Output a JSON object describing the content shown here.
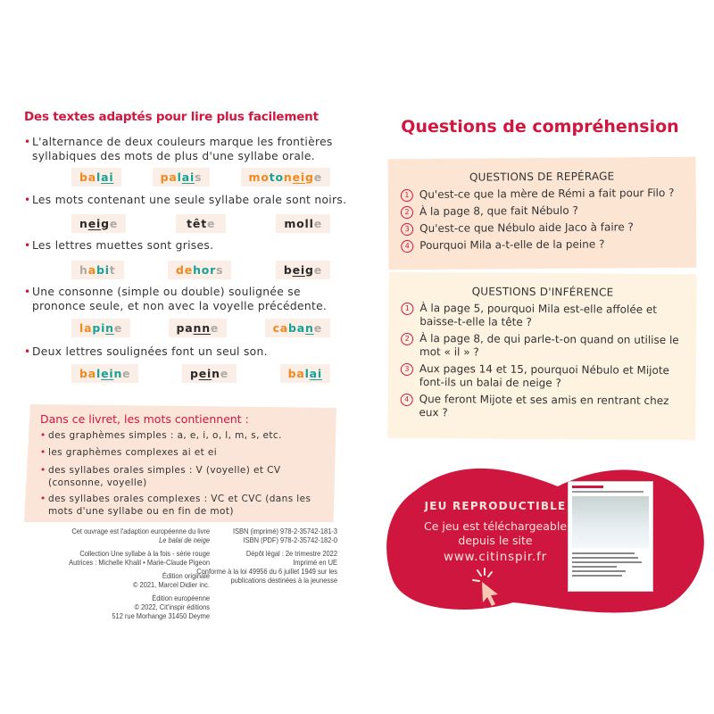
{
  "left": {
    "title": "Des textes adaptés pour lire plus facilement",
    "rules": [
      {
        "text": "L'alternance de deux couleurs marque les frontières syllabiques des mots de plus d'une syllabe orale.",
        "words": [
          [
            [
              "ba",
              "o"
            ],
            [
              "l",
              "t"
            ],
            [
              "ai",
              "t",
              1
            ]
          ],
          [
            [
              "pa",
              "o"
            ],
            [
              "l",
              "t"
            ],
            [
              "ai",
              "t",
              1
            ],
            [
              "s",
              "g"
            ]
          ],
          [
            [
              "mo",
              "o"
            ],
            [
              "to",
              "t"
            ],
            [
              "n",
              "o"
            ],
            [
              "ei",
              "o",
              1
            ],
            [
              "g",
              "o"
            ],
            [
              "e",
              "g"
            ]
          ]
        ]
      },
      {
        "text": "Les mots contenant une seule syllabe orale sont noirs.",
        "words": [
          [
            [
              "n",
              "k"
            ],
            [
              "ei",
              "k",
              1
            ],
            [
              "g",
              "k"
            ],
            [
              "e",
              "g"
            ]
          ],
          [
            [
              "têt",
              "k"
            ],
            [
              "e",
              "g"
            ]
          ],
          [
            [
              "moll",
              "k"
            ],
            [
              "e",
              "g"
            ]
          ]
        ]
      },
      {
        "text": "Les lettres muettes sont grises.",
        "words": [
          [
            [
              "h",
              "g"
            ],
            [
              "a",
              "o"
            ],
            [
              "bi",
              "t"
            ],
            [
              "t",
              "g"
            ]
          ],
          [
            [
              "de",
              "o"
            ],
            [
              "hor",
              "t"
            ],
            [
              "s",
              "g"
            ]
          ],
          [
            [
              "b",
              "k"
            ],
            [
              "ei",
              "k",
              1
            ],
            [
              "g",
              "k"
            ],
            [
              "e",
              "g"
            ]
          ]
        ]
      },
      {
        "text": "Une consonne (simple ou double) soulignée se prononce seule, et non avec la voyelle précédente.",
        "words": [
          [
            [
              "la",
              "o"
            ],
            [
              "pi",
              "t"
            ],
            [
              "n",
              "t",
              1
            ],
            [
              "e",
              "g"
            ]
          ],
          [
            [
              "pa",
              "k"
            ],
            [
              "nn",
              "k",
              1
            ],
            [
              "e",
              "g"
            ]
          ],
          [
            [
              "ca",
              "o"
            ],
            [
              "ba",
              "t"
            ],
            [
              "n",
              "t",
              1
            ],
            [
              "e",
              "g"
            ]
          ]
        ]
      },
      {
        "text": "Deux lettres soulignées font un seul son.",
        "words": [
          [
            [
              "ba",
              "o"
            ],
            [
              "l",
              "t"
            ],
            [
              "ei",
              "t",
              1
            ],
            [
              "n",
              "t"
            ],
            [
              "e",
              "g"
            ]
          ],
          [
            [
              "p",
              "k"
            ],
            [
              "ei",
              "k",
              1
            ],
            [
              "n",
              "k"
            ],
            [
              "e",
              "g"
            ]
          ],
          [
            [
              "ba",
              "o"
            ],
            [
              "l",
              "t"
            ],
            [
              "ai",
              "t",
              1
            ]
          ]
        ]
      }
    ],
    "box": {
      "title": "Dans ce livret, les mots contiennent :",
      "items": [
        "des graphèmes simples : a, e, i, o, l, m, s, etc.",
        "les graphèmes complexes ai et ei",
        "des syllabes orales simples : V (voyelle) et CV (consonne, voyelle)",
        "des syllabes orales complexes : VC et CVC (dans les mots d'une syllabe ou en fin de mot)"
      ]
    }
  },
  "credits": {
    "left": [
      "Cet ouvrage est l'adaption européenne du livre",
      "Le balai de neige",
      "",
      "Collection Une syllabe à la fois - série rouge",
      "Autrices : Michelle Khalil • Marie-Claude Pigeon",
      "",
      "Édition originale",
      "© 2021, Marcel Didier inc.",
      "",
      "Édition européenne",
      "© 2022, Cit'inspir éditions",
      "512 rue Morhange 31450 Deyme"
    ],
    "right": [
      "ISBN (imprimé) 978-2-35742-181-3",
      "ISBN (PDF) 978-2-35742-182-0",
      "",
      "Dépôt légal : 2e trimestre 2022",
      "Imprimé en UE",
      "Conforme à la loi 49956 du 6 juillet 1949 sur les",
      "publications destinées à la jeunesse"
    ]
  },
  "right": {
    "title": "Questions de compréhension",
    "reperage": {
      "title": "QUESTIONS DE REPÉRAGE",
      "questions": [
        "Qu'est-ce que la mère de Rémi a fait pour Filo ?",
        "À la page 8, que fait Nébulo ?",
        "Qu'est-ce que Nébulo aide Jaco à faire ?",
        "Pourquoi Mila a-t-elle de la peine ?"
      ]
    },
    "inference": {
      "title": "QUESTIONS D'INFÉRENCE",
      "questions": [
        "À la page 5, pourquoi Mila est-elle affolée et baisse-t-elle la tête ?",
        "À la page 8, de qui parle-t-on quand on utilise le mot « il » ?",
        "Aux pages 14 et 15, pourquoi Nébulo et Mijote font-ils un balai de neige ?",
        "Que feront Mijote et ses amis en rentrant chez eux ?"
      ]
    },
    "game": {
      "title": "JEU REPRODUCTIBLE",
      "line1": "Ce jeu est téléchargeable",
      "line2": "depuis le site",
      "url": "www.citinspir.fr",
      "icon": "cursor-click-icon"
    }
  },
  "colors": {
    "red": "#d0173f",
    "o": "#f0891e",
    "t": "#17a297",
    "k": "#2a2a2a",
    "g": "#b0aaa6"
  }
}
